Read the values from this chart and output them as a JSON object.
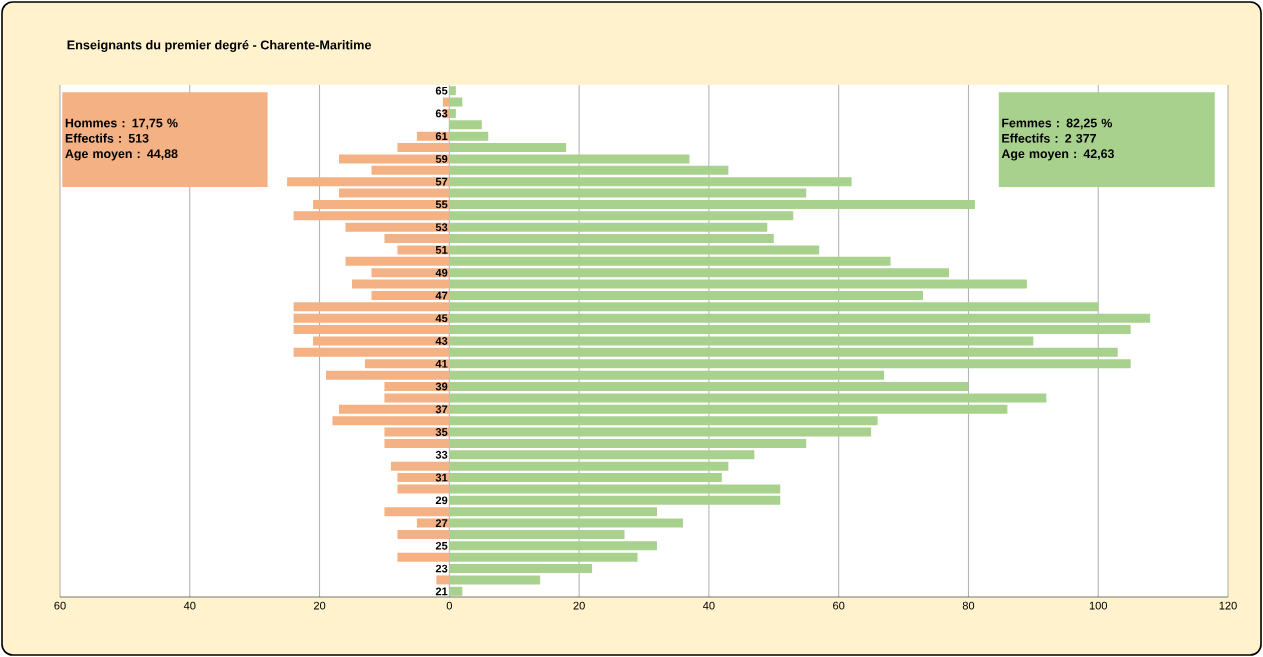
{
  "chart_data": {
    "type": "bar",
    "orientation": "horizontal",
    "stacked": true,
    "grid": "x",
    "title": "Enseignants du premier degré - Charente-Maritime",
    "categories": [
      "65",
      null,
      "63",
      null,
      "61",
      null,
      "59",
      null,
      "57",
      null,
      "55",
      null,
      "53",
      null,
      "51",
      null,
      "49",
      null,
      "47",
      null,
      "45",
      null,
      "43",
      null,
      "41",
      null,
      "39",
      null,
      "37",
      null,
      "35",
      null,
      "33",
      null,
      "31",
      null,
      "29",
      null,
      "27",
      null,
      "25",
      null,
      "23",
      null,
      "21"
    ],
    "series": [
      {
        "color": "#f4b183",
        "values": [
          null,
          -1,
          -1,
          null,
          -5,
          -8,
          -17,
          -12,
          -25,
          -17,
          -21,
          -24,
          -16,
          -10,
          -8,
          -16,
          -12,
          -15,
          -12,
          -24,
          -24,
          -24,
          -21,
          -24,
          -13,
          -19,
          -10,
          -10,
          -17,
          -18,
          -10,
          -10,
          null,
          -9,
          -8,
          -8,
          null,
          -10,
          -5,
          -8,
          null,
          -8,
          null,
          -2,
          null
        ]
      },
      {
        "color": "#a9d18e",
        "values": [
          1,
          2,
          1,
          5,
          6,
          18,
          37,
          43,
          62,
          55,
          81,
          53,
          49,
          50,
          57,
          68,
          77,
          89,
          73,
          100,
          108,
          105,
          90,
          103,
          105,
          67,
          80,
          92,
          86,
          66,
          65,
          55,
          47,
          43,
          42,
          51,
          51,
          32,
          36,
          27,
          32,
          29,
          22,
          14,
          2
        ]
      }
    ],
    "xlim": [
      -60,
      120
    ],
    "xticks": [
      {
        "value": -60,
        "label": "60"
      },
      {
        "value": -40,
        "label": "40"
      },
      {
        "value": -20,
        "label": "20"
      },
      0,
      20,
      40,
      60,
      80,
      100,
      120
    ],
    "annotations": [
      "Hommes :  17,75 %",
      "Effectifs : 513",
      "Age moyen : 44,88",
      "Femmes :  82,25  %",
      "Effectifs : 2 377",
      "Age moyen : 42,63"
    ]
  }
}
